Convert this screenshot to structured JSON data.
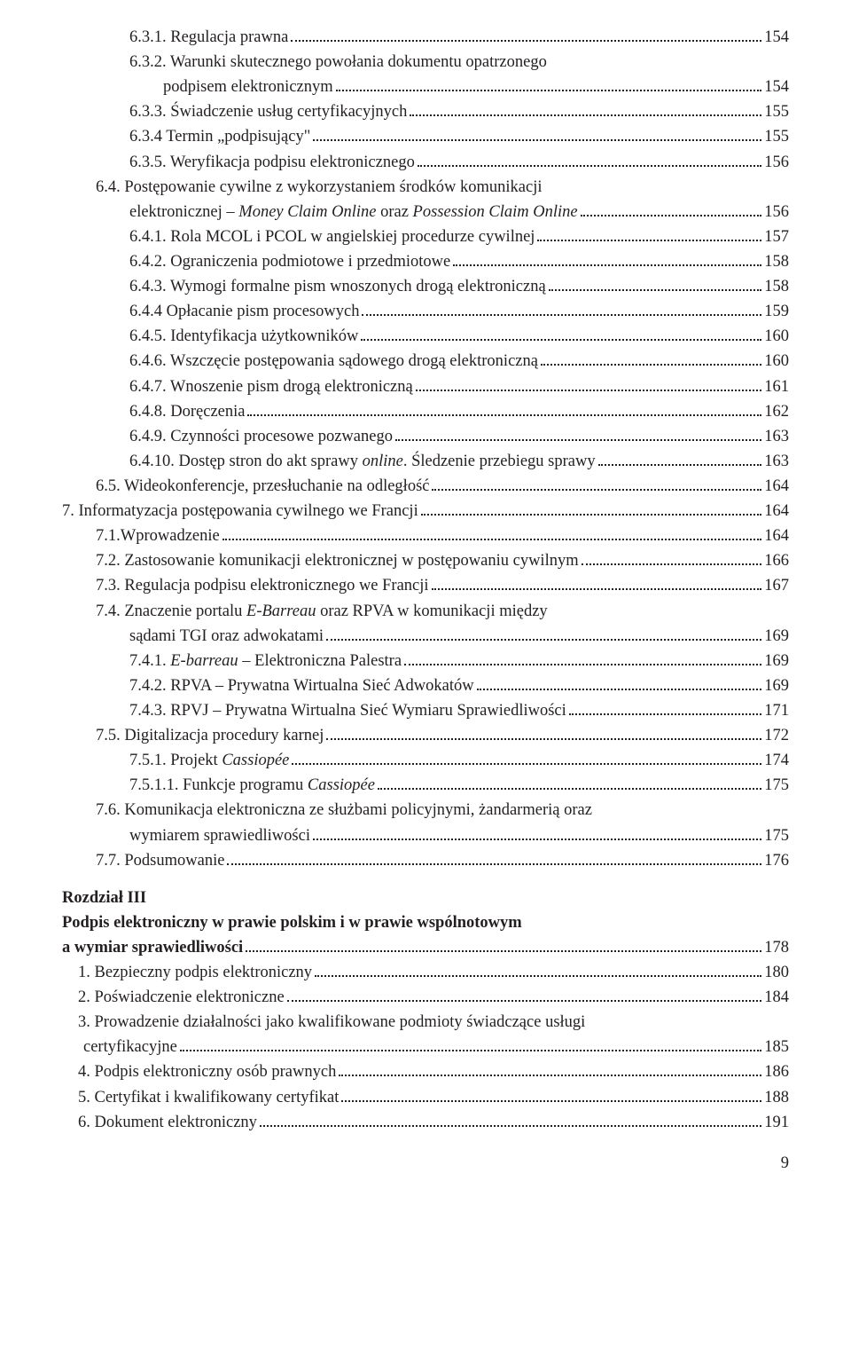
{
  "text_color": "#231f20",
  "background_color": "#ffffff",
  "font_family": "Palatino Linotype",
  "base_font_size_pt": 14,
  "page_number": "9",
  "entries": [
    {
      "indent": 2,
      "label": "6.3.1. Regulacja prawna",
      "page": "154"
    },
    {
      "indent": 2,
      "label": "6.3.2. Warunki skutecznego powołania dokumentu opatrzonego",
      "page": null
    },
    {
      "indent": 3,
      "label": "podpisem elektronicznym",
      "page": "154",
      "wrap": true
    },
    {
      "indent": 2,
      "label": "6.3.3. Świadczenie usług certyfikacyjnych",
      "page": "155"
    },
    {
      "indent": 2,
      "label": "6.3.4 Termin „podpisujący\"",
      "page": "155"
    },
    {
      "indent": 2,
      "label": "6.3.5. Weryfikacja podpisu elektronicznego",
      "page": "156"
    },
    {
      "indent": 1,
      "label": "6.4. Postępowanie cywilne z wykorzystaniem środków komunikacji",
      "page": null
    },
    {
      "indent": 2,
      "label_parts": [
        {
          "t": "elektronicznej – "
        },
        {
          "t": "Money Claim Online",
          "i": true
        },
        {
          "t": " oraz "
        },
        {
          "t": "Possession Claim Online",
          "i": true
        }
      ],
      "page": "156",
      "wrap": true
    },
    {
      "indent": 2,
      "label": "6.4.1. Rola MCOL i PCOL w angielskiej procedurze cywilnej",
      "page": "157"
    },
    {
      "indent": 2,
      "label": "6.4.2. Ograniczenia podmiotowe i przedmiotowe",
      "page": "158"
    },
    {
      "indent": 2,
      "label": "6.4.3. Wymogi formalne pism wnoszonych drogą elektroniczną",
      "page": "158"
    },
    {
      "indent": 2,
      "label": "6.4.4 Opłacanie pism procesowych",
      "page": "159"
    },
    {
      "indent": 2,
      "label": "6.4.5. Identyfikacja użytkowników",
      "page": "160"
    },
    {
      "indent": 2,
      "label": "6.4.6. Wszczęcie postępowania sądowego drogą elektroniczną",
      "page": "160"
    },
    {
      "indent": 2,
      "label": "6.4.7. Wnoszenie pism drogą elektroniczną",
      "page": "161"
    },
    {
      "indent": 2,
      "label": "6.4.8. Doręczenia",
      "page": "162"
    },
    {
      "indent": 2,
      "label": "6.4.9. Czynności procesowe pozwanego",
      "page": "163"
    },
    {
      "indent": 2,
      "label_parts": [
        {
          "t": "6.4.10. Dostęp stron do akt sprawy "
        },
        {
          "t": "online",
          "i": true
        },
        {
          "t": ". Śledzenie przebiegu sprawy"
        }
      ],
      "page": "163"
    },
    {
      "indent": 1,
      "label": "6.5. Wideokonferencje, przesłuchanie na odległość",
      "page": "164"
    },
    {
      "indent": 0,
      "label": "7. Informatyzacja postępowania cywilnego we Francji",
      "page": "164"
    },
    {
      "indent": 1,
      "label": "7.1.Wprowadzenie",
      "page": "164"
    },
    {
      "indent": 1,
      "label": "7.2. Zastosowanie komunikacji elektronicznej w postępowaniu cywilnym",
      "page": "166"
    },
    {
      "indent": 1,
      "label": "7.3. Regulacja podpisu elektronicznego we Francji",
      "page": "167"
    },
    {
      "indent": 1,
      "label_parts": [
        {
          "t": "7.4. Znaczenie portalu "
        },
        {
          "t": "E-Barreau",
          "i": true
        },
        {
          "t": " oraz RPVA w komunikacji między"
        }
      ],
      "page": null
    },
    {
      "indent": 2,
      "label": "sądami TGI oraz adwokatami",
      "page": "169",
      "wrap": true
    },
    {
      "indent": 2,
      "label_parts": [
        {
          "t": "7.4.1. "
        },
        {
          "t": "E-barreau",
          "i": true
        },
        {
          "t": " – Elektroniczna Palestra"
        }
      ],
      "page": "169"
    },
    {
      "indent": 2,
      "label": "7.4.2. RPVA – Prywatna Wirtualna Sieć Adwokatów",
      "page": "169"
    },
    {
      "indent": 2,
      "label": "7.4.3. RPVJ – Prywatna Wirtualna Sieć Wymiaru Sprawiedliwości",
      "page": "171"
    },
    {
      "indent": 1,
      "label": "7.5. Digitalizacja procedury karnej",
      "page": "172"
    },
    {
      "indent": 2,
      "label_parts": [
        {
          "t": "7.5.1. Projekt "
        },
        {
          "t": "Cassiopée",
          "i": true
        }
      ],
      "page": "174"
    },
    {
      "indent": 2,
      "label_parts": [
        {
          "t": "7.5.1.1. Funkcje programu "
        },
        {
          "t": "Cassiopée",
          "i": true
        }
      ],
      "page": "175"
    },
    {
      "indent": 1,
      "label": "7.6. Komunikacja elektroniczna ze służbami policyjnymi, żandarmerią oraz",
      "page": null
    },
    {
      "indent": 2,
      "label": "wymiarem sprawiedliwości",
      "page": "175",
      "wrap": true
    },
    {
      "indent": 1,
      "label": "7.7. Podsumowanie",
      "page": "176"
    }
  ],
  "chapter": {
    "heading": "Rozdział III",
    "title_lines": [
      "Podpis elektroniczny w prawie polskim i w prawie wspólnotowym",
      "a wymiar sprawiedliwości"
    ],
    "title_page": "178",
    "entries": [
      {
        "indent": 1,
        "label": "1. Bezpieczny podpis elektroniczny",
        "page": "180"
      },
      {
        "indent": 1,
        "label": "2. Poświadczenie elektroniczne",
        "page": "184"
      },
      {
        "indent": 1,
        "label": "3. Prowadzenie działalności jako kwalifikowane podmioty świadczące usługi",
        "page": null
      },
      {
        "indent": 1,
        "label": "certyfikacyjne",
        "page": "185",
        "wrap": true,
        "wrap_small": true
      },
      {
        "indent": 1,
        "label": "4. Podpis elektroniczny osób prawnych",
        "page": "186"
      },
      {
        "indent": 1,
        "label": "5. Certyfikat i kwalifikowany certyfikat",
        "page": "188"
      },
      {
        "indent": 1,
        "label": "6. Dokument elektroniczny",
        "page": "191"
      }
    ]
  }
}
